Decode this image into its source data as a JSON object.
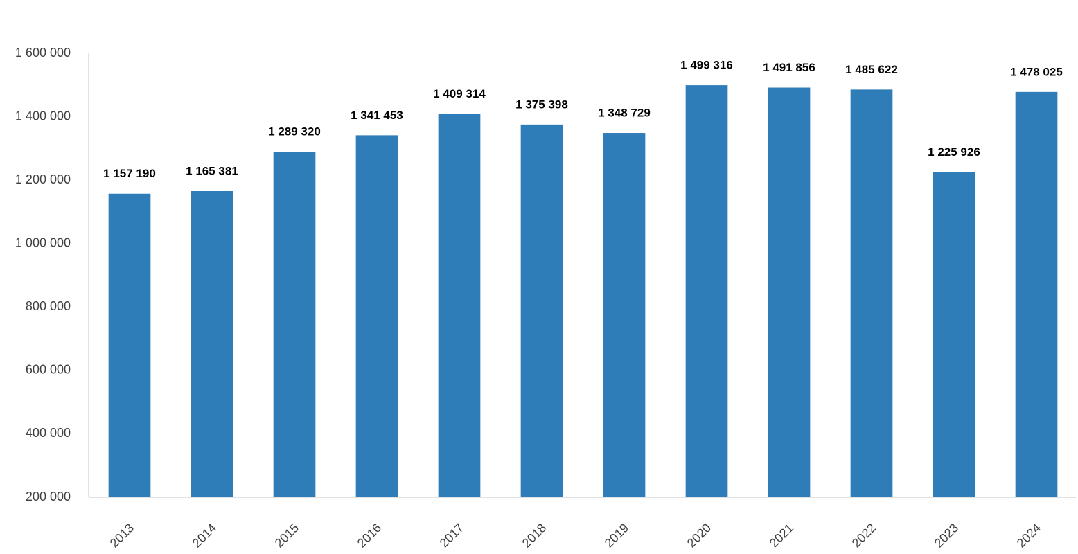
{
  "chart_data": {
    "type": "bar",
    "categories": [
      "2013",
      "2014",
      "2015",
      "2016",
      "2017",
      "2018",
      "2019",
      "2020",
      "2021",
      "2022",
      "2023",
      "2024"
    ],
    "values": [
      1157190,
      1165381,
      1289320,
      1341453,
      1409314,
      1375398,
      1348729,
      1499316,
      1491856,
      1485622,
      1225926,
      1478025
    ],
    "value_labels": [
      "1 157 190",
      "1 165 381",
      "1 289 320",
      "1 341 453",
      "1 409 314",
      "1 375 398",
      "1 348 729",
      "1 499 316",
      "1 491 856",
      "1 485 622",
      "1 225 926",
      "1 478 025"
    ],
    "color": "#2f7db8",
    "ylim": [
      200000,
      1600000
    ],
    "yticks": [
      {
        "value": 200000,
        "label": "200 000"
      },
      {
        "value": 400000,
        "label": "400 000"
      },
      {
        "value": 600000,
        "label": "600 000"
      },
      {
        "value": 800000,
        "label": "800 000"
      },
      {
        "value": 1000000,
        "label": "1 000 000"
      },
      {
        "value": 1200000,
        "label": "1 200 000"
      },
      {
        "value": 1400000,
        "label": "1 400 000"
      },
      {
        "value": 1600000,
        "label": "1 600 000"
      }
    ],
    "grid": false
  }
}
